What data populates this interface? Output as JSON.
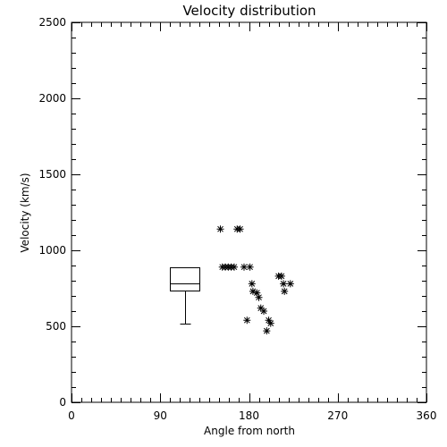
{
  "chart_data": {
    "type": "scatter",
    "title": "Velocity distribution",
    "xlabel": "Angle from north",
    "ylabel": "Velocity (km/s)",
    "xlim": [
      0,
      360
    ],
    "ylim": [
      0,
      2500
    ],
    "xticks": [
      0,
      90,
      180,
      270,
      360
    ],
    "xtick_labels": [
      "0",
      "90",
      "180",
      "270",
      "360"
    ],
    "xminor_step": 10,
    "yticks": [
      0,
      500,
      1000,
      1500,
      2000,
      2500
    ],
    "ytick_labels": [
      "0",
      "500",
      "1000",
      "1500",
      "2000",
      "2500"
    ],
    "yminor_step": 100,
    "grid": false,
    "points": [
      {
        "x": 151,
        "y": 1140
      },
      {
        "x": 168,
        "y": 1140
      },
      {
        "x": 171,
        "y": 1140
      },
      {
        "x": 153,
        "y": 890
      },
      {
        "x": 156,
        "y": 890
      },
      {
        "x": 159,
        "y": 890
      },
      {
        "x": 162,
        "y": 890
      },
      {
        "x": 165,
        "y": 890
      },
      {
        "x": 175,
        "y": 890
      },
      {
        "x": 181,
        "y": 890
      },
      {
        "x": 210,
        "y": 830
      },
      {
        "x": 213,
        "y": 830
      },
      {
        "x": 183,
        "y": 780
      },
      {
        "x": 215,
        "y": 780
      },
      {
        "x": 222,
        "y": 780
      },
      {
        "x": 184,
        "y": 730
      },
      {
        "x": 188,
        "y": 720
      },
      {
        "x": 216,
        "y": 730
      },
      {
        "x": 190,
        "y": 690
      },
      {
        "x": 192,
        "y": 620
      },
      {
        "x": 195,
        "y": 600
      },
      {
        "x": 200,
        "y": 540
      },
      {
        "x": 202,
        "y": 520
      },
      {
        "x": 178,
        "y": 540
      },
      {
        "x": 198,
        "y": 470
      }
    ],
    "boxplot": {
      "x_left": 100,
      "x_right": 130,
      "whisker_low": 520,
      "q1": 735,
      "median": 785,
      "q3": 890
    }
  }
}
